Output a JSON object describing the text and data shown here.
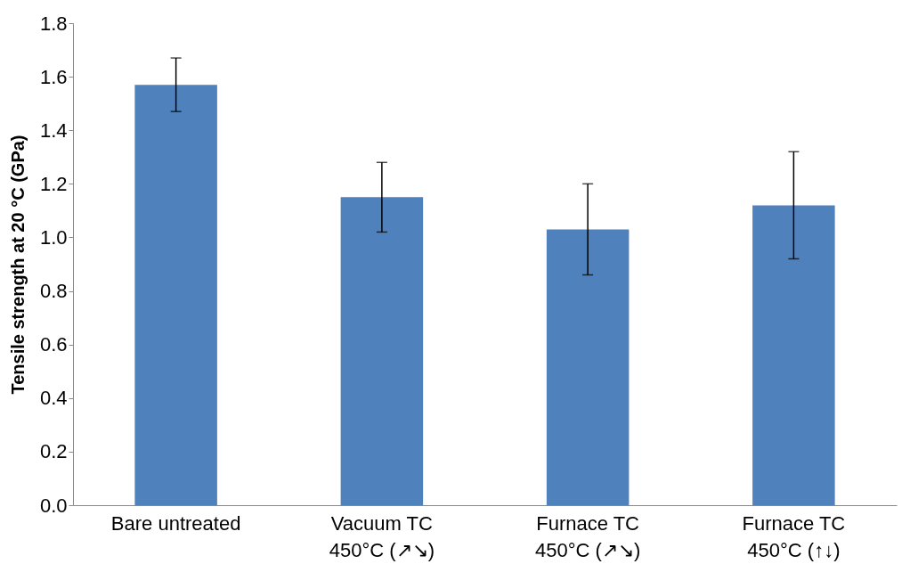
{
  "chart_data": {
    "type": "bar",
    "ylabel": "Tensile strength at 20 °C (GPa)",
    "categories": [
      "Bare untreated",
      "Vacuum TC\n450°C (↗↘)",
      "Furnace TC\n450°C (↗↘)",
      "Furnace TC\n450°C (↑↓)"
    ],
    "values": [
      1.57,
      1.15,
      1.03,
      1.12
    ],
    "errors": [
      0.1,
      0.13,
      0.17,
      0.2
    ],
    "color": "#4f81bd",
    "ylim": [
      0,
      1.8
    ],
    "yticks": [
      {
        "value": 0,
        "label": "0.0"
      },
      {
        "value": 0.2,
        "label": "0.2"
      },
      {
        "value": 0.4,
        "label": "0.4"
      },
      {
        "value": 0.6,
        "label": "0.6"
      },
      {
        "value": 0.8,
        "label": "0.8"
      },
      {
        "value": 1.0,
        "label": "1.0"
      },
      {
        "value": 1.2,
        "label": "1.2"
      },
      {
        "value": 1.4,
        "label": "1.4"
      },
      {
        "value": 1.6,
        "label": "1.6"
      },
      {
        "value": 1.8,
        "label": "1.8"
      }
    ],
    "grid": false
  }
}
